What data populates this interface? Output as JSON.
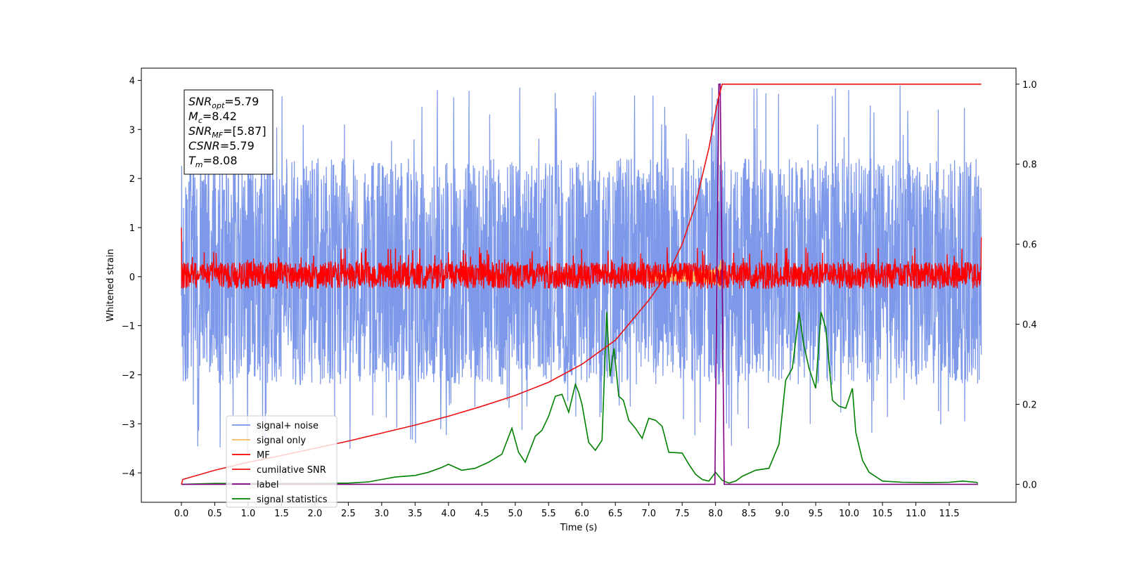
{
  "chart_data": {
    "type": "line",
    "xlabel": "Time (s)",
    "ylabel": "Whitened strain",
    "xlim": [
      -0.6,
      12.5
    ],
    "ylim": [
      -4.6,
      4.25
    ],
    "y2lim": [
      -0.045,
      1.04
    ],
    "xticks": [
      0.0,
      0.5,
      1.0,
      1.5,
      2.0,
      2.5,
      3.0,
      3.5,
      4.0,
      4.5,
      5.0,
      5.5,
      6.0,
      6.5,
      7.0,
      7.5,
      8.0,
      8.5,
      9.0,
      9.5,
      10.0,
      10.5,
      11.0,
      11.5
    ],
    "xtick_labels": [
      "0.0",
      "0.5",
      "1.0",
      "1.5",
      "2.0",
      "2.5",
      "3.0",
      "3.5",
      "4.0",
      "4.5",
      "5.0",
      "5.5",
      "6.0",
      "6.5",
      "7.0",
      "7.5",
      "8.0",
      "8.5",
      "9.0",
      "9.5",
      "10.0",
      "10.5",
      "11.0",
      "11.5"
    ],
    "yticks": [
      -4,
      -3,
      -2,
      -1,
      0,
      1,
      2,
      3,
      4
    ],
    "ytick_labels": [
      "−4",
      "−3",
      "−2",
      "−1",
      "0",
      "1",
      "2",
      "3",
      "4"
    ],
    "y2ticks": [
      0.0,
      0.2,
      0.4,
      0.6,
      0.8,
      1.0
    ],
    "y2tick_labels": [
      "0.0",
      "0.2",
      "0.4",
      "0.6",
      "0.8",
      "1.0"
    ],
    "grid": false,
    "legend_position": "lower-left",
    "annotation": [
      {
        "name": "SNR",
        "sub": "opt",
        "value": "=5.79"
      },
      {
        "name": "M",
        "sub": "c",
        "value": "=8.42"
      },
      {
        "name": "SNR",
        "sub": "MF",
        "value": "=[5.87]"
      },
      {
        "name": "CSNR",
        "sub": "",
        "value": "=5.79"
      },
      {
        "name": "T",
        "sub": "m",
        "value": "=8.08"
      }
    ],
    "series": [
      {
        "name": "signal+ noise",
        "color": "#7793e8",
        "axis": "left",
        "kind": "noise",
        "t_range": [
          0.0,
          11.98
        ],
        "typical_range": [
          -2.1,
          2.3
        ],
        "extremes": [
          -3.6,
          3.9
        ]
      },
      {
        "name": "signal only",
        "color": "#f5b963",
        "axis": "left",
        "kind": "chirp",
        "merger_time": 8.08,
        "peak_amplitude": 0.35
      },
      {
        "name": "MF",
        "color": "#ff0000",
        "axis": "left",
        "kind": "noise",
        "t_range": [
          0.0,
          11.98
        ],
        "typical_range": [
          -0.25,
          0.3
        ],
        "extremes": [
          -0.3,
          0.6
        ]
      },
      {
        "name": "cumilative SNR",
        "color": "#ee1111",
        "axis": "right",
        "x": [
          0.0,
          0.02,
          0.5,
          1.0,
          1.5,
          2.0,
          2.5,
          3.0,
          3.5,
          4.0,
          4.5,
          5.0,
          5.5,
          6.0,
          6.5,
          7.0,
          7.3,
          7.5,
          7.7,
          7.8,
          7.9,
          8.0,
          8.05,
          8.1,
          11.98
        ],
        "y": [
          0.0,
          0.012,
          0.035,
          0.055,
          0.072,
          0.09,
          0.108,
          0.128,
          0.148,
          0.17,
          0.195,
          0.222,
          0.255,
          0.3,
          0.36,
          0.46,
          0.53,
          0.6,
          0.7,
          0.77,
          0.84,
          0.93,
          0.97,
          1.0,
          1.0
        ]
      },
      {
        "name": "label",
        "color": "#800080",
        "axis": "right",
        "x": [
          0.0,
          7.99,
          8.05,
          8.07,
          8.13,
          11.93
        ],
        "y": [
          0.0,
          0.0,
          1.0,
          1.0,
          0.0,
          0.0
        ]
      },
      {
        "name": "signal statistics",
        "color": "#008000",
        "axis": "right",
        "x": [
          0.0,
          0.5,
          1.0,
          1.5,
          2.0,
          2.5,
          2.8,
          3.0,
          3.2,
          3.5,
          3.7,
          3.9,
          4.0,
          4.2,
          4.4,
          4.6,
          4.8,
          4.95,
          5.05,
          5.15,
          5.3,
          5.4,
          5.5,
          5.6,
          5.7,
          5.8,
          5.9,
          5.95,
          6.0,
          6.1,
          6.2,
          6.3,
          6.37,
          6.42,
          6.48,
          6.55,
          6.62,
          6.7,
          6.8,
          6.9,
          7.0,
          7.1,
          7.2,
          7.3,
          7.5,
          7.6,
          7.7,
          7.8,
          7.9,
          8.0,
          8.1,
          8.2,
          8.3,
          8.4,
          8.6,
          8.8,
          8.95,
          9.05,
          9.15,
          9.25,
          9.32,
          9.4,
          9.5,
          9.58,
          9.65,
          9.75,
          9.85,
          9.95,
          10.05,
          10.1,
          10.2,
          10.3,
          10.5,
          10.8,
          11.2,
          11.5,
          11.7,
          11.9,
          11.93
        ],
        "y": [
          0.0,
          0.002,
          0.002,
          0.002,
          0.002,
          0.003,
          0.006,
          0.012,
          0.018,
          0.022,
          0.03,
          0.042,
          0.05,
          0.035,
          0.04,
          0.055,
          0.075,
          0.14,
          0.08,
          0.055,
          0.12,
          0.135,
          0.17,
          0.22,
          0.225,
          0.18,
          0.25,
          0.23,
          0.2,
          0.105,
          0.085,
          0.11,
          0.43,
          0.27,
          0.34,
          0.22,
          0.21,
          0.16,
          0.14,
          0.115,
          0.165,
          0.16,
          0.145,
          0.08,
          0.078,
          0.05,
          0.025,
          0.012,
          0.008,
          0.03,
          0.01,
          0.003,
          0.008,
          0.02,
          0.035,
          0.04,
          0.1,
          0.26,
          0.29,
          0.43,
          0.35,
          0.29,
          0.24,
          0.43,
          0.39,
          0.21,
          0.195,
          0.19,
          0.24,
          0.13,
          0.06,
          0.03,
          0.008,
          0.005,
          0.004,
          0.005,
          0.008,
          0.005,
          0.003
        ]
      }
    ]
  }
}
